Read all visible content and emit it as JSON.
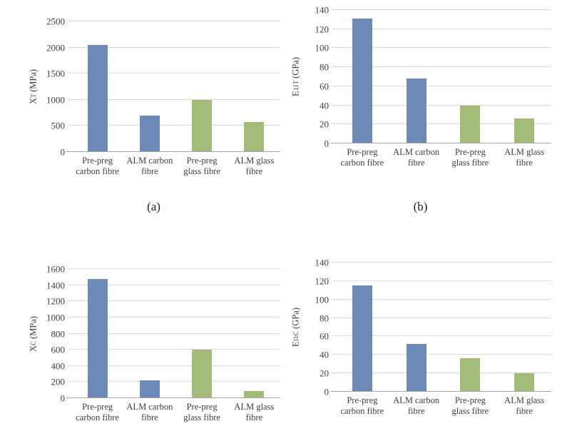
{
  "palette": {
    "carbon_fibre_bar": "#6d8bb8",
    "glass_fibre_bar": "#a3ba78",
    "gridline": "#d9d9d9",
    "axis_line": "#a6a6a6",
    "label_text": "#3f3f3f"
  },
  "captions": {
    "a": "(a)",
    "b": "(b)"
  },
  "chart_data": [
    {
      "key": "a",
      "type": "bar",
      "caption": "(a)",
      "ylabel": {
        "base": "X",
        "sub": "T",
        "unit": "(MPa)"
      },
      "ylabel_text": "XT (MPa)",
      "categories": [
        "Pre-preg carbon fibre",
        "ALM carbon fibre",
        "Pre-preg glass fibre",
        "ALM glass fibre"
      ],
      "category_lines": [
        [
          "Pre-preg",
          "carbon fibre"
        ],
        [
          "ALM carbon",
          "fibre"
        ],
        [
          "Pre-preg",
          "glass fibre"
        ],
        [
          "ALM glass",
          "fibre"
        ]
      ],
      "values": [
        2050,
        700,
        1000,
        570
      ],
      "colors": [
        "#6d8bb8",
        "#6d8bb8",
        "#a3ba78",
        "#a3ba78"
      ],
      "yticks": [
        0,
        500,
        1000,
        1500,
        2000,
        2500
      ],
      "ylim": [
        0,
        2500
      ],
      "grid": true,
      "legend": null
    },
    {
      "key": "b",
      "type": "bar",
      "caption": "(b)",
      "ylabel": {
        "base": "E",
        "sub": "11T",
        "unit": "(GPa)"
      },
      "ylabel_text": "E11T (GPa)",
      "categories": [
        "Pre-preg carbon fibre",
        "ALM carbon fibre",
        "Pre-preg glass fibre",
        "ALM glass fibre"
      ],
      "category_lines": [
        [
          "Pre-preg",
          "carbon fibre"
        ],
        [
          "ALM carbon",
          "fibre"
        ],
        [
          "Pre-preg",
          "glass fibre"
        ],
        [
          "ALM glass",
          "fibre"
        ]
      ],
      "values": [
        131,
        68,
        40,
        26
      ],
      "colors": [
        "#6d8bb8",
        "#6d8bb8",
        "#a3ba78",
        "#a3ba78"
      ],
      "yticks": [
        0,
        20,
        40,
        60,
        80,
        100,
        120,
        140
      ],
      "ylim": [
        0,
        140
      ],
      "grid": true,
      "legend": null
    },
    {
      "key": "c",
      "type": "bar",
      "caption": null,
      "ylabel": {
        "base": "X",
        "sub": "C",
        "unit": "(MPa)"
      },
      "ylabel_text": "XC (MPa)",
      "categories": [
        "Pre-preg carbon fibre",
        "ALM carbon fibre",
        "Pre-preg glass fibre",
        "ALM glass fibre"
      ],
      "category_lines": [
        [
          "Pre-preg",
          "carbon fibre"
        ],
        [
          "ALM carbon",
          "fibre"
        ],
        [
          "Pre-preg",
          "glass fibre"
        ],
        [
          "ALM glass",
          "fibre"
        ]
      ],
      "values": [
        1480,
        220,
        600,
        90
      ],
      "colors": [
        "#6d8bb8",
        "#6d8bb8",
        "#a3ba78",
        "#a3ba78"
      ],
      "yticks": [
        0,
        200,
        400,
        600,
        800,
        1000,
        1200,
        1400,
        1600
      ],
      "ylim": [
        0,
        1600
      ],
      "grid": true,
      "legend": null
    },
    {
      "key": "d",
      "type": "bar",
      "caption": null,
      "ylabel": {
        "base": "E",
        "sub": "11C",
        "unit": "(GPa)"
      },
      "ylabel_text": "E11C (GPa)",
      "categories": [
        "Pre-preg carbon fibre",
        "ALM carbon fibre",
        "Pre-preg glass fibre",
        "ALM glass fibre"
      ],
      "category_lines": [
        [
          "Pre-preg",
          "carbon fibre"
        ],
        [
          "ALM carbon",
          "fibre"
        ],
        [
          "Pre-preg",
          "glass fibre"
        ],
        [
          "ALM glass",
          "fibre"
        ]
      ],
      "values": [
        115,
        52,
        36,
        20
      ],
      "colors": [
        "#6d8bb8",
        "#6d8bb8",
        "#a3ba78",
        "#a3ba78"
      ],
      "yticks": [
        0,
        20,
        40,
        60,
        80,
        100,
        120,
        140
      ],
      "ylim": [
        0,
        140
      ],
      "grid": true,
      "legend": null
    }
  ]
}
